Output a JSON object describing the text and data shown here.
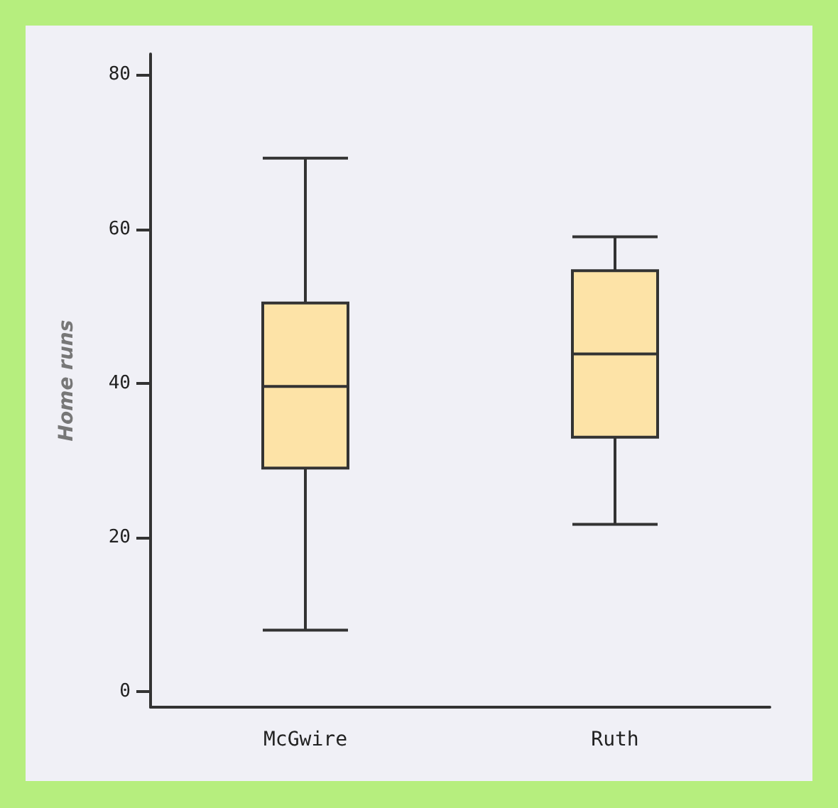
{
  "chart_data": {
    "type": "box",
    "ylabel": "Home runs",
    "categories": [
      "McGwire",
      "Ruth"
    ],
    "series": [
      {
        "color": "#fde3a7",
        "boxes": [
          {
            "low": 8,
            "q1": 29,
            "median": 39.6,
            "q3": 50.4,
            "high": 69.2
          },
          {
            "low": 21.7,
            "q1": 33,
            "median": 43.8,
            "q3": 54.6,
            "high": 59
          }
        ]
      }
    ],
    "ylim": [
      -2,
      82.7
    ],
    "yticks": [
      0,
      20,
      40,
      60,
      80
    ],
    "grid": false
  }
}
